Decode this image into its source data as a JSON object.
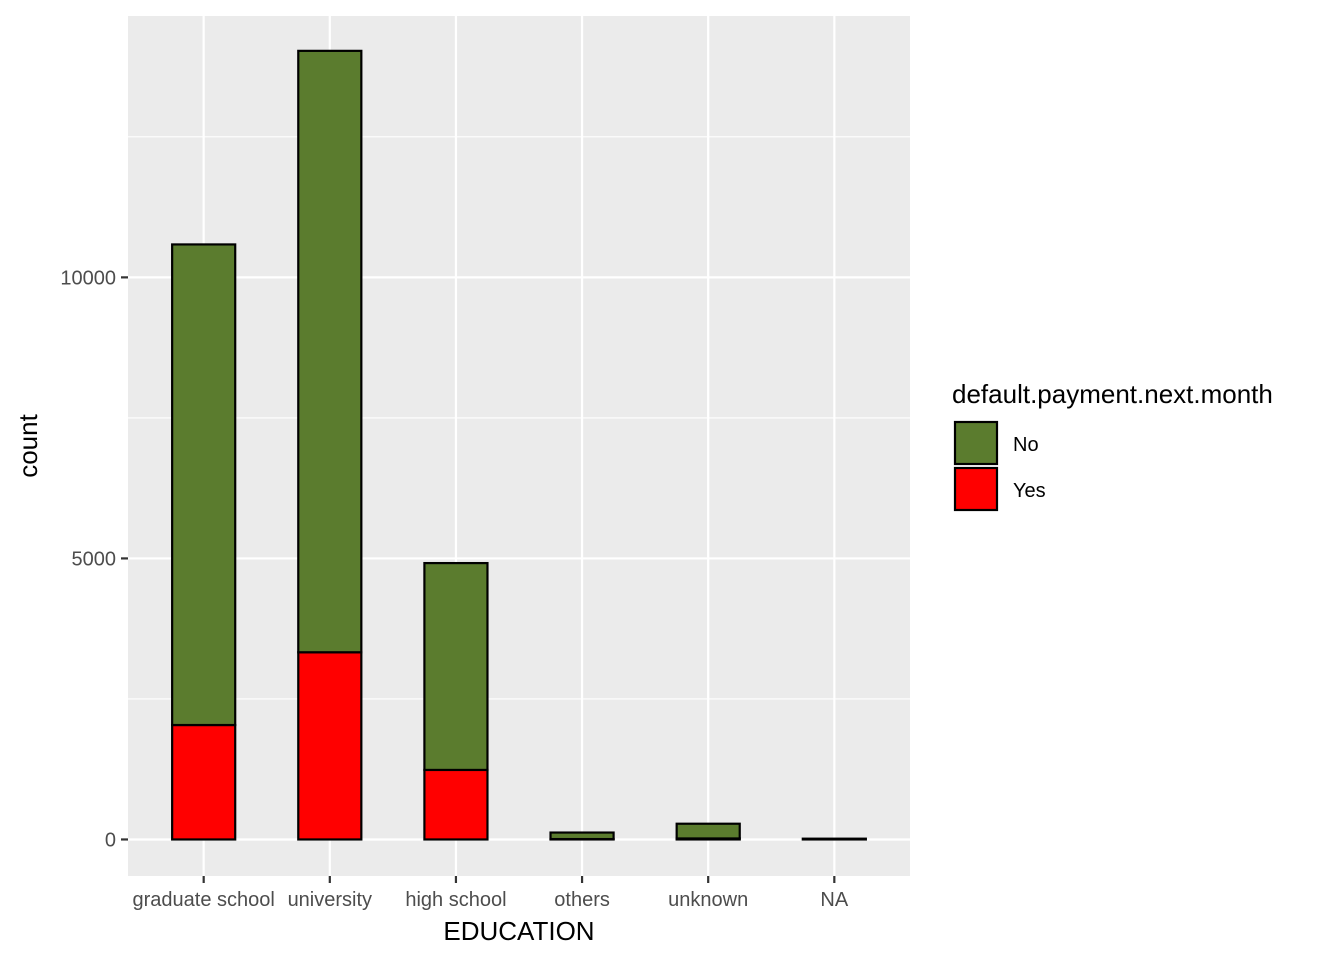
{
  "chart_data": {
    "type": "bar",
    "stacked": true,
    "xlabel": "EDUCATION",
    "ylabel": "count",
    "categories": [
      "graduate school",
      "university",
      "high school",
      "others",
      "unknown",
      "NA"
    ],
    "series": [
      {
        "name": "No",
        "color": "#5b7c2e",
        "values": [
          8550,
          10700,
          3680,
          116,
          262,
          14
        ]
      },
      {
        "name": "Yes",
        "color": "#ff0000",
        "values": [
          2036,
          3330,
          1237,
          7,
          18,
          0
        ]
      }
    ],
    "ylim": [
      -650,
      14650
    ],
    "yticks": [
      0,
      5000,
      10000
    ],
    "ytick_labels": [
      "0",
      "5000",
      "10000"
    ],
    "legend": {
      "title": "default.payment.next.month",
      "position": "right"
    },
    "grid": true
  }
}
